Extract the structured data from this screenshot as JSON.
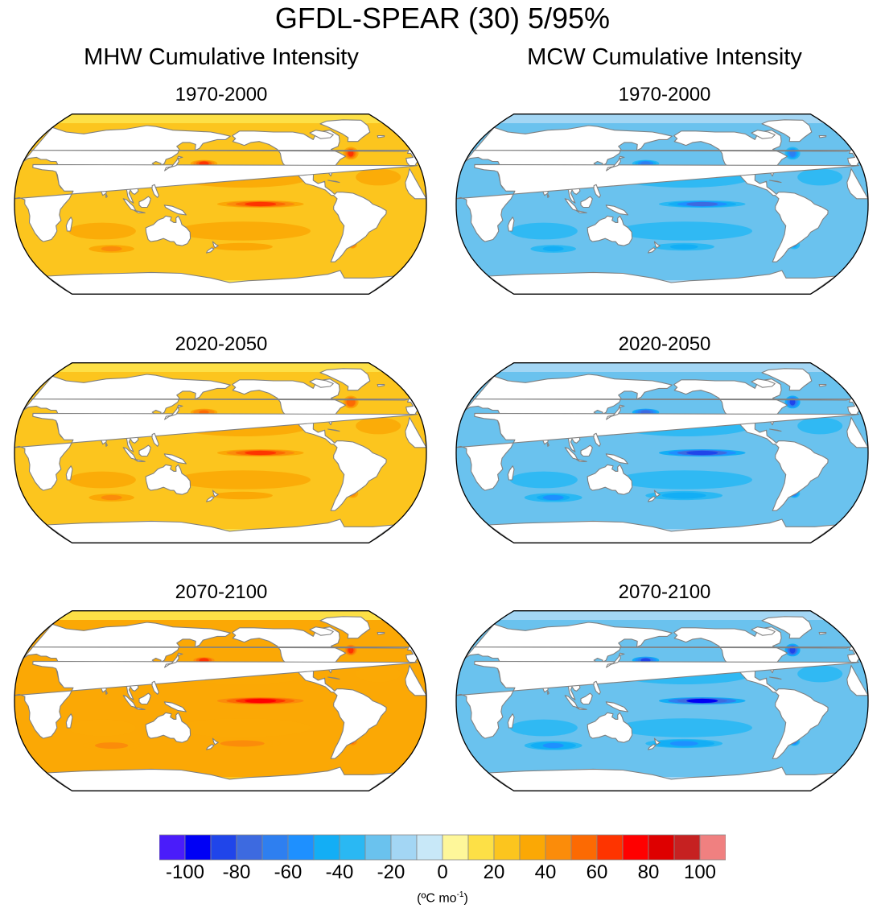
{
  "title": "GFDL-SPEAR (30) 5/95%",
  "columns": [
    {
      "title": "MHW Cumulative Intensity",
      "palette": "warm"
    },
    {
      "title": "MCW Cumulative Intensity",
      "palette": "cold"
    }
  ],
  "panels": [
    {
      "column": 0,
      "row": 0,
      "period": "1970-2000",
      "mean_value": 22,
      "hotspot_value": 68
    },
    {
      "column": 0,
      "row": 1,
      "period": "2020-2050",
      "mean_value": 26,
      "hotspot_value": 62
    },
    {
      "column": 0,
      "row": 2,
      "period": "2070-2100",
      "mean_value": 30,
      "hotspot_value": 72
    },
    {
      "column": 1,
      "row": 0,
      "period": "1970-2000",
      "mean_value": -24,
      "hotspot_value": -72
    },
    {
      "column": 1,
      "row": 1,
      "period": "2020-2050",
      "mean_value": -28,
      "hotspot_value": -88
    },
    {
      "column": 1,
      "row": 2,
      "period": "2070-2100",
      "mean_value": -30,
      "hotspot_value": -92
    }
  ],
  "colorbar": {
    "colors": [
      "#4a1cfa",
      "#0000f5",
      "#2045ea",
      "#3d6ae0",
      "#2e7ff0",
      "#1e90ff",
      "#13aef5",
      "#2ab8f3",
      "#6ac2ee",
      "#a3d6f4",
      "#c8e8f8",
      "#fef79a",
      "#fde046",
      "#fcc51e",
      "#fba805",
      "#fb8c0a",
      "#fc6a03",
      "#fe3400",
      "#ff0000",
      "#de0000",
      "#c62121",
      "#f08080"
    ],
    "tick_values": [
      -100,
      -80,
      -60,
      -40,
      -20,
      0,
      20,
      40,
      60,
      80,
      100
    ],
    "tick_labels": [
      "-100",
      "-80",
      "-60",
      "-40",
      "-20",
      "0",
      "20",
      "40",
      "60",
      "80",
      "100"
    ],
    "units_base": "(ºC mo",
    "units_exp": "-1",
    "units_close": ")"
  },
  "chart_data": {
    "type": "heatmap",
    "title": "GFDL-SPEAR (30) 5/95%",
    "panel_titles": [
      "MHW Cumulative Intensity",
      "MCW Cumulative Intensity"
    ],
    "periods": [
      "1970-2000",
      "2020-2050",
      "2070-2100"
    ],
    "colorbar_range": [
      -100,
      100
    ],
    "colorbar_step": 10,
    "units": "ºC mo-1"
  }
}
